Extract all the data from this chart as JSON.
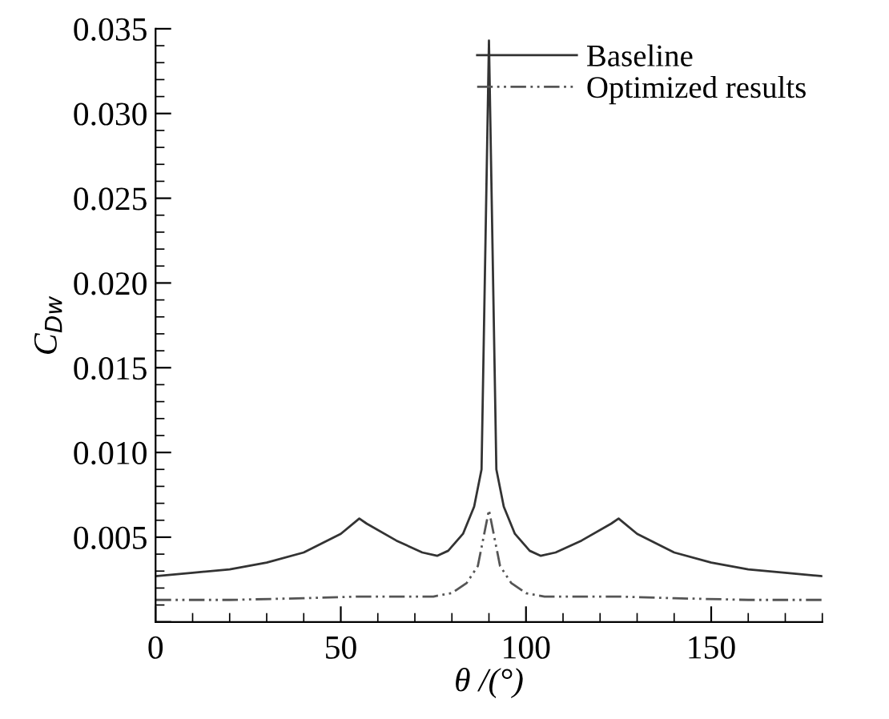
{
  "chart_data": {
    "type": "line",
    "xlabel": "θ /(°)",
    "ylabel": "C$_{Dw}$",
    "xlim": [
      0,
      180
    ],
    "xticks": [
      0,
      50,
      100,
      150
    ],
    "ylim": [
      0,
      0.035
    ],
    "yticks": [
      {
        "value": 0,
        "label": null
      },
      {
        "value": 0.005,
        "label": "0.005"
      },
      {
        "value": 0.01,
        "label": "0.010"
      },
      {
        "value": 0.015,
        "label": "0.015"
      },
      {
        "value": 0.02,
        "label": "0.020"
      },
      {
        "value": 0.025,
        "label": "0.025"
      },
      {
        "value": 0.03,
        "label": "0.030"
      },
      {
        "value": 0.035,
        "label": "0.035"
      }
    ],
    "grid": false,
    "legend": "top right",
    "marker": "none",
    "series": [
      {
        "name": "Baseline",
        "color": "#333333",
        "line_style": "solid",
        "x": [
          0,
          10,
          20,
          30,
          40,
          50,
          55,
          57,
          65,
          72,
          76,
          79,
          83,
          86,
          88,
          90,
          92,
          94,
          97,
          101,
          104,
          108,
          115,
          123,
          125,
          130,
          140,
          150,
          160,
          170,
          180
        ],
        "values": [
          0.0027,
          0.0029,
          0.0031,
          0.0035,
          0.0041,
          0.0052,
          0.0061,
          0.0058,
          0.0048,
          0.0041,
          0.0039,
          0.0042,
          0.0052,
          0.0068,
          0.009,
          0.0343,
          0.009,
          0.0068,
          0.0052,
          0.0042,
          0.0039,
          0.0041,
          0.0048,
          0.0058,
          0.0061,
          0.0052,
          0.0041,
          0.0035,
          0.0031,
          0.0029,
          0.0027
        ]
      },
      {
        "name": "Optimized results",
        "color": "#555555",
        "line_style": "dashdotdot",
        "x": [
          0,
          20,
          40,
          55,
          75,
          80,
          84,
          87,
          89,
          90,
          91,
          93,
          96,
          100,
          105,
          125,
          140,
          160,
          180
        ],
        "values": [
          0.0013,
          0.0013,
          0.0014,
          0.0015,
          0.0015,
          0.0017,
          0.0023,
          0.0033,
          0.0055,
          0.0066,
          0.0055,
          0.0033,
          0.0023,
          0.0017,
          0.0015,
          0.0015,
          0.0014,
          0.0013,
          0.0013
        ]
      }
    ]
  }
}
